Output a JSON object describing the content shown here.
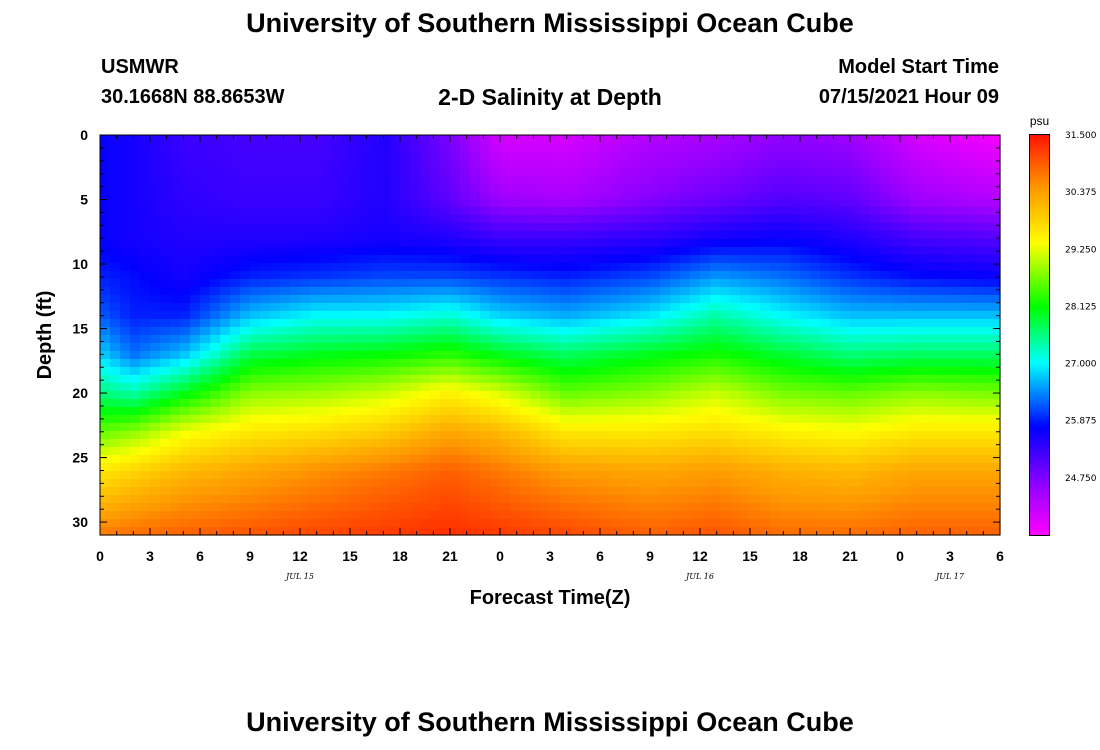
{
  "header": {
    "title": "University of Southern Mississippi Ocean Cube",
    "footer_title": "University of Southern Mississippi Ocean Cube",
    "station": "USMWR",
    "coordinates": "30.1668N  88.8653W",
    "subtitle": "2-D Salinity at Depth",
    "model_start_label": "Model Start Time",
    "model_start_value": "07/15/2021 Hour 09"
  },
  "chart_data": {
    "type": "heatmap",
    "title": "2-D Salinity at Depth",
    "xlabel": "Forecast Time(Z)",
    "ylabel": "Depth (ft)",
    "x_hours_range": [
      0,
      54
    ],
    "y_range": [
      0,
      31
    ],
    "x_ticks": [
      "0",
      "3",
      "6",
      "9",
      "12",
      "15",
      "18",
      "21",
      "0",
      "3",
      "6",
      "9",
      "12",
      "15",
      "18",
      "21",
      "0",
      "3",
      "6"
    ],
    "y_ticks": [
      "0",
      "5",
      "10",
      "15",
      "20",
      "25",
      "30"
    ],
    "date_labels": [
      {
        "text": "JUL 15",
        "hour": 12
      },
      {
        "text": "JUL 16",
        "hour": 36
      },
      {
        "text": "JUL 17",
        "hour": 51
      }
    ],
    "colorbar": {
      "units": "psu",
      "min": 23.625,
      "max": 31.5,
      "tick_labels": [
        "31.500",
        "30.375",
        "29.250",
        "28.125",
        "27.000",
        "25.875",
        "24.750"
      ],
      "tick_values": [
        31.5,
        30.375,
        29.25,
        28.125,
        27.0,
        25.875,
        24.75
      ]
    },
    "profile_hours": [
      0,
      2,
      5,
      9,
      13,
      17,
      21,
      24,
      28,
      33,
      37,
      41,
      45,
      49,
      54
    ],
    "profile_depths": [
      0,
      5,
      8,
      11,
      14,
      17,
      20,
      23,
      26,
      31
    ],
    "salinity_psu": [
      [
        25.7,
        25.7,
        25.7,
        25.9,
        26.2,
        26.8,
        27.6,
        28.6,
        29.6,
        30.7
      ],
      [
        25.6,
        25.6,
        25.6,
        25.8,
        25.9,
        26.3,
        27.4,
        28.8,
        29.8,
        30.8
      ],
      [
        25.3,
        25.4,
        25.5,
        25.6,
        25.9,
        26.7,
        28.0,
        29.3,
        30.1,
        30.9
      ],
      [
        25.2,
        25.3,
        25.5,
        25.9,
        26.7,
        27.8,
        28.8,
        29.6,
        30.3,
        31.0
      ],
      [
        25.2,
        25.3,
        25.5,
        26.0,
        27.0,
        28.0,
        28.9,
        29.7,
        30.5,
        31.1
      ],
      [
        25.5,
        25.5,
        25.6,
        26.1,
        27.0,
        28.1,
        29.1,
        29.9,
        30.7,
        31.2
      ],
      [
        24.8,
        25.0,
        25.5,
        26.1,
        27.2,
        28.3,
        29.5,
        30.3,
        30.9,
        31.3
      ],
      [
        24.0,
        24.5,
        25.3,
        26.0,
        26.8,
        28.0,
        29.2,
        30.1,
        30.7,
        31.2
      ],
      [
        24.0,
        24.4,
        25.3,
        25.9,
        26.6,
        27.7,
        28.6,
        29.6,
        30.4,
        31.1
      ],
      [
        24.3,
        24.7,
        25.4,
        26.1,
        26.9,
        28.0,
        28.8,
        29.6,
        30.3,
        30.9
      ],
      [
        24.4,
        24.9,
        25.6,
        26.5,
        27.4,
        28.2,
        29.1,
        29.7,
        30.4,
        31.0
      ],
      [
        24.6,
        25.1,
        25.7,
        26.3,
        27.0,
        27.9,
        28.7,
        29.5,
        30.2,
        30.8
      ],
      [
        24.5,
        25.0,
        25.5,
        26.0,
        26.7,
        27.6,
        28.6,
        29.4,
        30.1,
        30.8
      ],
      [
        24.0,
        24.5,
        25.2,
        25.8,
        26.7,
        27.7,
        28.8,
        29.6,
        30.3,
        30.9
      ],
      [
        23.7,
        24.3,
        25.1,
        25.7,
        26.7,
        27.7,
        28.7,
        29.6,
        30.3,
        30.9
      ]
    ]
  }
}
